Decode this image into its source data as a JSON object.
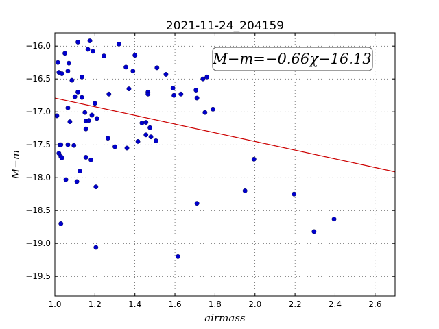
{
  "chart_data": {
    "type": "scatter",
    "title": "2021-11-24_204159",
    "xlabel": "airmass",
    "ylabel": "M−m",
    "xlim": [
      1.0,
      2.7
    ],
    "ylim": [
      -19.8,
      -15.8
    ],
    "y_inverted": false,
    "grid": true,
    "xticks": [
      1.0,
      1.2,
      1.4,
      1.6,
      1.8,
      2.0,
      2.2,
      2.4,
      2.6
    ],
    "xtick_labels": [
      "1.0",
      "1.2",
      "1.4",
      "1.6",
      "1.8",
      "2.0",
      "2.2",
      "2.4",
      "2.6"
    ],
    "yticks": [
      -16.0,
      -16.5,
      -17.0,
      -17.5,
      -18.0,
      -18.5,
      -19.0,
      -19.5
    ],
    "ytick_labels": [
      "−16.0",
      "−16.5",
      "−17.0",
      "−17.5",
      "−18.0",
      "−18.5",
      "−19.0",
      "−19.5"
    ],
    "annotation": "M−m=−0.66χ−16.13",
    "fit": {
      "slope": -0.66,
      "intercept": -16.13,
      "color": "#cc0000"
    },
    "point_color": "#0000cc",
    "points": [
      [
        1.01,
        -17.06
      ],
      [
        1.015,
        -16.25
      ],
      [
        1.02,
        -16.4
      ],
      [
        1.02,
        -17.63
      ],
      [
        1.025,
        -17.5
      ],
      [
        1.03,
        -18.7
      ],
      [
        1.03,
        -17.5
      ],
      [
        1.03,
        -17.68
      ],
      [
        1.035,
        -16.42
      ],
      [
        1.035,
        -17.7
      ],
      [
        1.05,
        -16.11
      ],
      [
        1.055,
        -18.03
      ],
      [
        1.065,
        -16.38
      ],
      [
        1.065,
        -17.5
      ],
      [
        1.065,
        -16.94
      ],
      [
        1.07,
        -16.26
      ],
      [
        1.075,
        -17.15
      ],
      [
        1.085,
        -16.52
      ],
      [
        1.095,
        -17.51
      ],
      [
        1.1,
        -16.77
      ],
      [
        1.11,
        -18.06
      ],
      [
        1.115,
        -16.7
      ],
      [
        1.115,
        -15.94
      ],
      [
        1.125,
        -17.9
      ],
      [
        1.135,
        -16.47
      ],
      [
        1.135,
        -16.78
      ],
      [
        1.15,
        -17.01
      ],
      [
        1.155,
        -17.69
      ],
      [
        1.155,
        -17.14
      ],
      [
        1.155,
        -17.26
      ],
      [
        1.165,
        -16.05
      ],
      [
        1.17,
        -17.13
      ],
      [
        1.175,
        -15.92
      ],
      [
        1.18,
        -17.73
      ],
      [
        1.185,
        -17.05
      ],
      [
        1.19,
        -16.08
      ],
      [
        1.2,
        -16.87
      ],
      [
        1.205,
        -18.14
      ],
      [
        1.205,
        -19.06
      ],
      [
        1.21,
        -17.1
      ],
      [
        1.245,
        -16.15
      ],
      [
        1.265,
        -17.4
      ],
      [
        1.27,
        -16.73
      ],
      [
        1.3,
        -17.53
      ],
      [
        1.32,
        -15.97
      ],
      [
        1.355,
        -16.32
      ],
      [
        1.36,
        -17.55
      ],
      [
        1.37,
        -16.65
      ],
      [
        1.39,
        -16.38
      ],
      [
        1.4,
        -16.14
      ],
      [
        1.415,
        -17.45
      ],
      [
        1.435,
        -17.17
      ],
      [
        1.455,
        -17.16
      ],
      [
        1.455,
        -17.35
      ],
      [
        1.465,
        -16.7
      ],
      [
        1.465,
        -16.73
      ],
      [
        1.475,
        -17.24
      ],
      [
        1.48,
        -17.38
      ],
      [
        1.505,
        -17.44
      ],
      [
        1.51,
        -16.33
      ],
      [
        1.555,
        -16.43
      ],
      [
        1.59,
        -16.64
      ],
      [
        1.595,
        -16.75
      ],
      [
        1.615,
        -19.2
      ],
      [
        1.63,
        -16.73
      ],
      [
        1.705,
        -16.67
      ],
      [
        1.71,
        -16.79
      ],
      [
        1.71,
        -18.39
      ],
      [
        1.74,
        -16.5
      ],
      [
        1.75,
        -17.01
      ],
      [
        1.76,
        -16.47
      ],
      [
        1.79,
        -16.96
      ],
      [
        1.95,
        -18.2
      ],
      [
        1.995,
        -17.72
      ],
      [
        2.195,
        -18.25
      ],
      [
        2.295,
        -18.82
      ],
      [
        2.395,
        -18.63
      ]
    ]
  }
}
